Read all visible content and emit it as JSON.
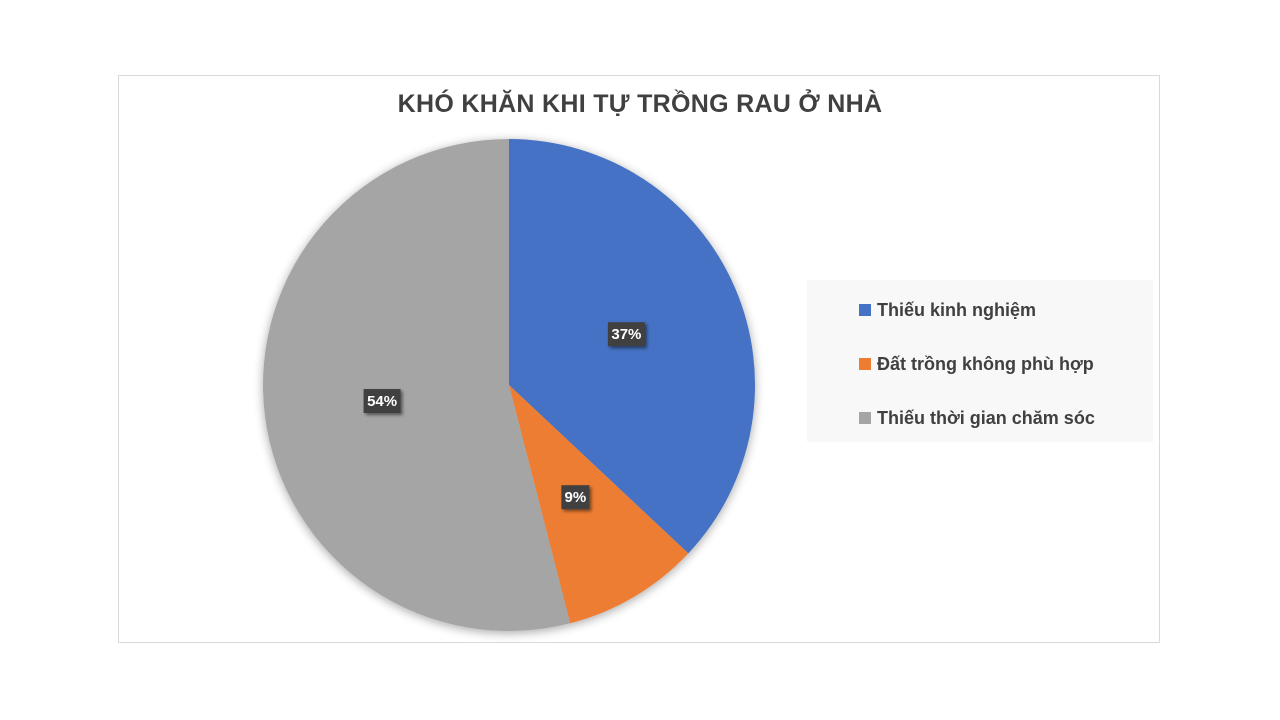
{
  "chart_data": {
    "type": "pie",
    "title": "KHÓ KHĂN KHI TỰ TRỒNG RAU Ở NHÀ",
    "categories": [
      "Thiếu kinh nghiệm",
      "Đất trồng không phù hợp",
      "Thiếu thời gian chăm sóc"
    ],
    "values": [
      37,
      9,
      54
    ],
    "labels": [
      "37%",
      "9%",
      "54%"
    ],
    "colors": [
      "#4472C4",
      "#ED7D31",
      "#A5A5A5"
    ],
    "legend_position": "right"
  }
}
